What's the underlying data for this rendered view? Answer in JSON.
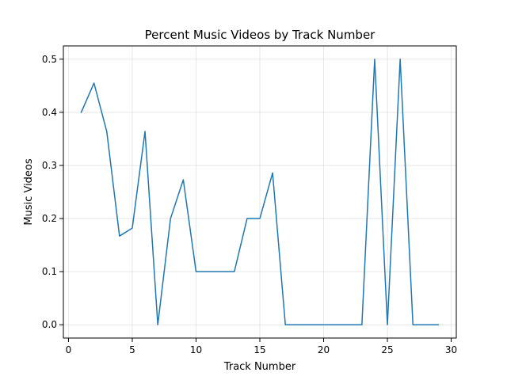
{
  "chart_data": {
    "type": "line",
    "title": "Percent Music Videos by Track Number",
    "xlabel": "Track Number",
    "ylabel": "Music Videos",
    "xlim": [
      -0.4,
      30.4
    ],
    "ylim": [
      -0.025,
      0.525
    ],
    "xticks": [
      0,
      5,
      10,
      15,
      20,
      25,
      30
    ],
    "yticks": [
      0.0,
      0.1,
      0.2,
      0.3,
      0.4,
      0.5
    ],
    "xtick_labels": [
      "0",
      "5",
      "10",
      "15",
      "20",
      "25",
      "30"
    ],
    "ytick_labels": [
      "0.0",
      "0.1",
      "0.2",
      "0.3",
      "0.4",
      "0.5"
    ],
    "grid": true,
    "series": [
      {
        "color": "#1f77b4",
        "x": [
          1,
          2,
          3,
          4,
          5,
          6,
          7,
          8,
          9,
          10,
          11,
          12,
          13,
          14,
          15,
          16,
          17,
          18,
          19,
          20,
          21,
          22,
          23,
          24,
          25,
          26,
          27,
          28,
          29
        ],
        "y": [
          0.4,
          0.455,
          0.364,
          0.167,
          0.182,
          0.364,
          0.0,
          0.2,
          0.273,
          0.1,
          0.1,
          0.1,
          0.1,
          0.2,
          0.2,
          0.286,
          0.0,
          0.0,
          0.0,
          0.0,
          0.0,
          0.0,
          0.0,
          0.5,
          0.0,
          0.5,
          0.0,
          0.0,
          0.0
        ]
      }
    ]
  }
}
